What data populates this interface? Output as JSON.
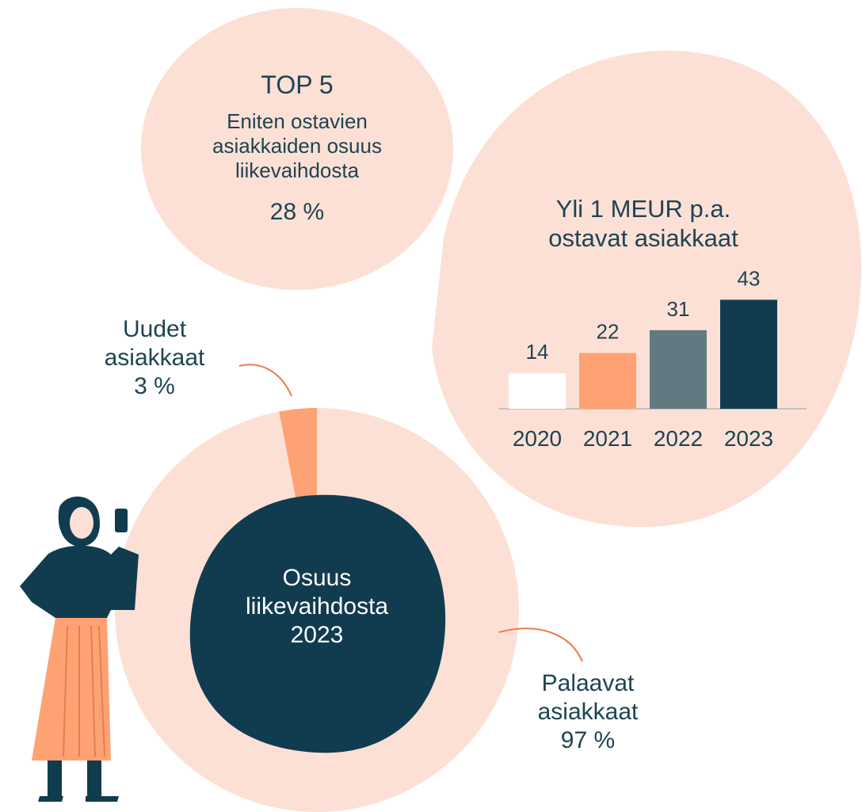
{
  "top5": {
    "title": "TOP 5",
    "text": "Eniten ostavien asiakkaiden osuus liikevaihdosta",
    "value": "28 %"
  },
  "chart_data": [
    {
      "type": "bar",
      "title": "Yli 1 MEUR p.a. ostavat asiakkaat",
      "categories": [
        "2020",
        "2021",
        "2022",
        "2023"
      ],
      "values": [
        14,
        22,
        31,
        43
      ],
      "colors": [
        "#ffffff",
        "#fea173",
        "#617a82",
        "#113c4f"
      ]
    },
    {
      "type": "donut",
      "title": "Osuus liikevaihdosta 2023",
      "categories": [
        "Uudet asiakkaat",
        "Palaavat asiakkaat"
      ],
      "values": [
        3,
        97
      ],
      "value_labels": [
        "3 %",
        "97 %"
      ],
      "colors": [
        "#fea173",
        "#fde0d5"
      ]
    }
  ]
}
